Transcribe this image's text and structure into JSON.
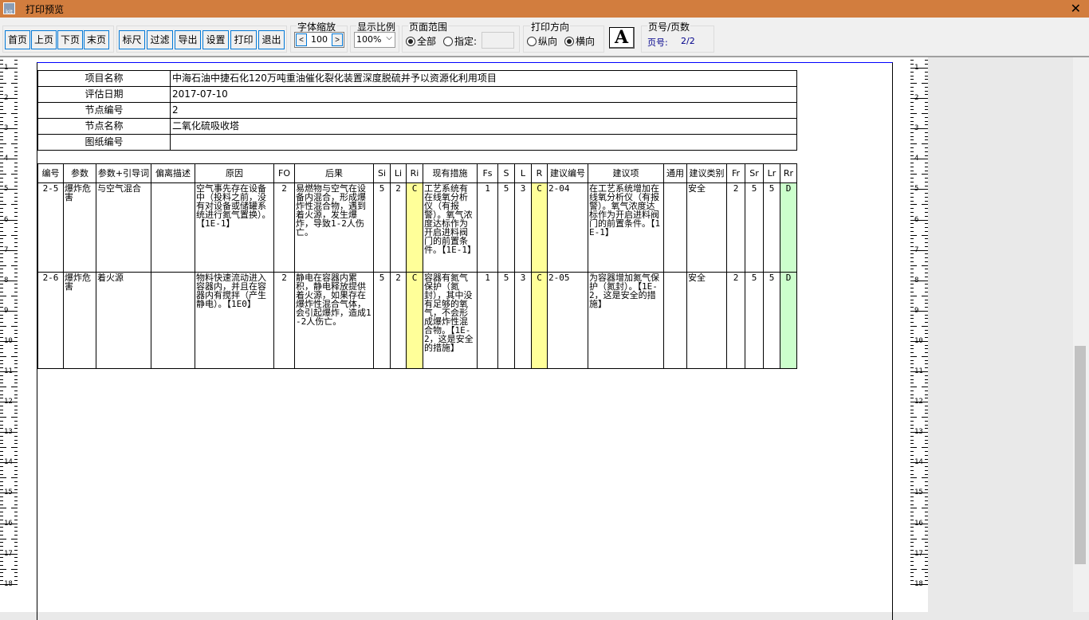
{
  "window": {
    "title": "打印预览",
    "icon_text": "kit"
  },
  "toolbar": {
    "nav": [
      "首页",
      "上页",
      "下页",
      "末页"
    ],
    "actions": [
      "标尺",
      "过滤",
      "导出",
      "设置",
      "打印",
      "退出"
    ],
    "font_scale": {
      "label": "字体缩放",
      "value": "100",
      "dec": "<",
      "inc": ">"
    },
    "zoom": {
      "label": "显示比例",
      "value": "100%"
    },
    "range": {
      "label": "页面范围",
      "all": "全部",
      "specify": "指定:",
      "selected": "all"
    },
    "orientation": {
      "label": "打印方向",
      "portrait": "纵向",
      "landscape": "横向",
      "selected": "landscape",
      "icon": "A"
    },
    "pages": {
      "label": "页号/页数",
      "page_label": "页号:",
      "value": "2/2"
    }
  },
  "info": [
    {
      "k": "项目名称",
      "v": "中海石油中捷石化120万吨重油催化裂化装置深度脱硫并予以资源化利用项目"
    },
    {
      "k": "评估日期",
      "v": "2017-07-10"
    },
    {
      "k": "节点编号",
      "v": "2"
    },
    {
      "k": "节点名称",
      "v": "二氧化硫吸收塔"
    },
    {
      "k": "图纸编号",
      "v": ""
    }
  ],
  "columns": [
    "编号",
    "参数",
    "参数+引导词",
    "偏离描述",
    "原因",
    "FO",
    "后果",
    "Si",
    "Li",
    "Ri",
    "现有措施",
    "Fs",
    "S",
    "L",
    "R",
    "建议编号",
    "建议项",
    "通用",
    "建议类别",
    "Fr",
    "Sr",
    "Lr",
    "Rr"
  ],
  "rows": [
    [
      "2-5",
      "爆炸危害",
      "与空气混合",
      "",
      "空气事先存在设备中（投料之前，没有对设备或储罐系统进行氮气置换）。【1E-1】",
      "2",
      "易燃物与空气在设备内混合，形成爆炸性混合物，遇到着火源，发生爆炸，导致1-2人伤亡。",
      "5",
      "2",
      "C",
      "工艺系统有在线氧分析仪（有报警）。氧气浓度达标作为开启进料阀门的前置条件。【1E-1】",
      "1",
      "5",
      "3",
      "C",
      "2-04",
      "在工艺系统增加在线氧分析仪（有报警）。氧气浓度达标作为开启进料阀门的前置条件。【1E-1】",
      "",
      "安全",
      "2",
      "5",
      "5",
      "D"
    ],
    [
      "2-6",
      "爆炸危害",
      "着火源",
      "",
      "物料快速流动进入容器内，并且在容器内有搅拌（产生静电）。【1E0】",
      "2",
      "静电在容器内累积，静电释放提供着火源，如果存在爆炸性混合气体，会引起爆炸，造成1-2人伤亡。",
      "5",
      "2",
      "C",
      "容器有氮气保护（氮封），其中没有足够的氧气，不会形成爆炸性混合物。【1E-2，这是安全的措施】",
      "1",
      "5",
      "3",
      "C",
      "2-05",
      "为容器增加氮气保护（氮封）。【1E-2，这是安全的措施】",
      "",
      "安全",
      "2",
      "5",
      "5",
      "D"
    ]
  ],
  "ruler": [
    "1",
    "2",
    "3",
    "4",
    "5",
    "6",
    "7",
    "8",
    "9",
    "10",
    "11",
    "12",
    "13",
    "14",
    "15",
    "16",
    "17",
    "18"
  ],
  "colors": {
    "titlebar": "#d27d3e",
    "risk_c": "#ffff99",
    "risk_d": "#ccffcc",
    "accent": "#0078d7"
  }
}
